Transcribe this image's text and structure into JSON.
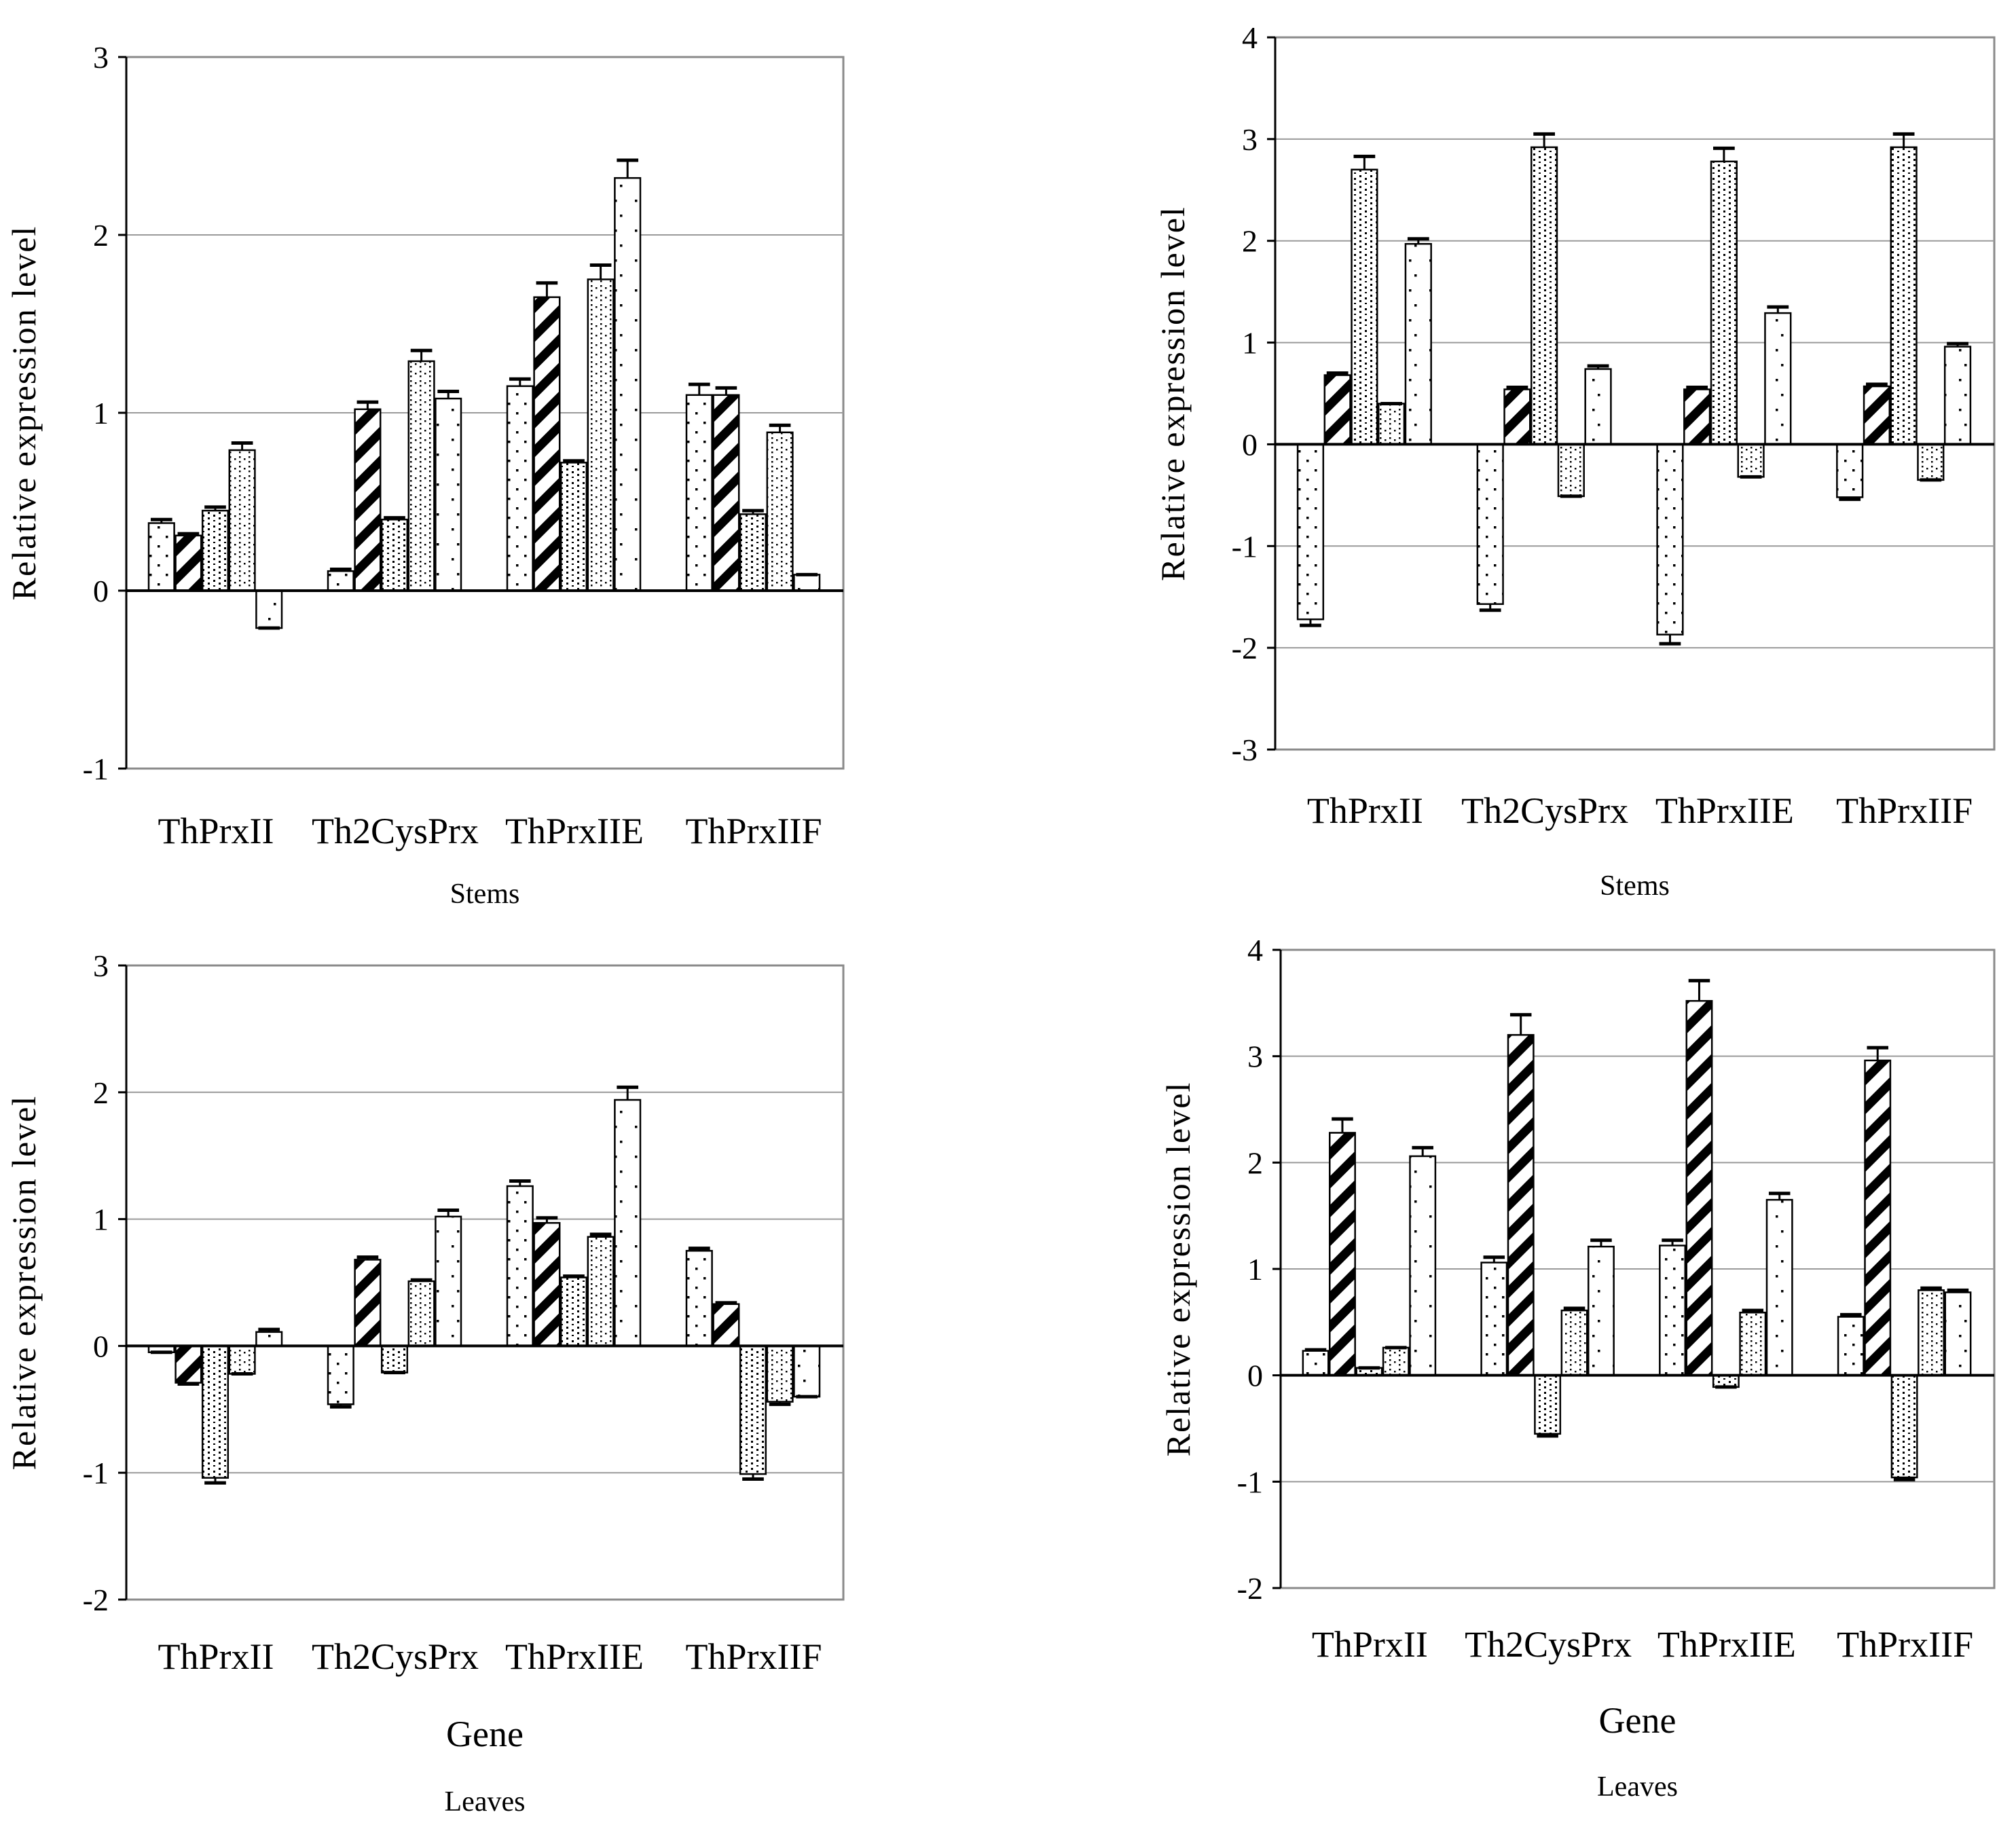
{
  "chart_data": [
    {
      "type": "bar",
      "panel": "top-left",
      "categories": [
        "ThPrxII",
        "Th2CysPrx",
        "ThPrxIIE",
        "ThPrxIIF"
      ],
      "series": [
        {
          "values": [
            0.38,
            0.11,
            1.15,
            1.1
          ],
          "errors": [
            0.02,
            0.01,
            0.04,
            0.06
          ],
          "fill": "sparse-dots"
        },
        {
          "values": [
            0.31,
            1.02,
            1.65,
            1.1
          ],
          "errors": [
            0.01,
            0.04,
            0.08,
            0.04
          ],
          "fill": "diagonal-stripes"
        },
        {
          "values": [
            0.45,
            0.4,
            0.72,
            0.43
          ],
          "errors": [
            0.02,
            0.01,
            0.01,
            0.02
          ],
          "fill": "dotted-wave"
        },
        {
          "values": [
            0.79,
            1.29,
            1.75,
            0.89
          ],
          "errors": [
            0.04,
            0.06,
            0.08,
            0.04
          ],
          "fill": "dotted-grid"
        },
        {
          "values": [
            -0.21,
            1.08,
            2.32,
            0.09
          ],
          "errors": [
            0.0,
            0.04,
            0.1,
            0.0
          ],
          "fill": "fine-dots"
        }
      ],
      "ylim": [
        -1,
        3
      ],
      "yticks": [
        -1,
        0,
        1,
        2,
        3
      ],
      "ylabel": "Relative expression level",
      "xlabel": "",
      "caption": "Stems",
      "grid": true
    },
    {
      "type": "bar",
      "panel": "top-right",
      "categories": [
        "ThPrxII",
        "Th2CysPrx",
        "ThPrxIIE",
        "ThPrxIIF"
      ],
      "series": [
        {
          "values": [
            -1.72,
            -1.57,
            -1.87,
            -0.52
          ],
          "errors": [
            0.06,
            0.06,
            0.09,
            0.02
          ],
          "fill": "sparse-dots"
        },
        {
          "values": [
            0.68,
            0.54,
            0.54,
            0.57
          ],
          "errors": [
            0.02,
            0.02,
            0.02,
            0.02
          ],
          "fill": "diagonal-stripes"
        },
        {
          "values": [
            2.7,
            2.92,
            2.78,
            2.92
          ],
          "errors": [
            0.13,
            0.13,
            0.13,
            0.13
          ],
          "fill": "dotted-wave"
        },
        {
          "values": [
            0.4,
            -0.51,
            -0.32,
            -0.35
          ],
          "errors": [
            0.0,
            0.0,
            0.0,
            0.0
          ],
          "fill": "dotted-grid"
        },
        {
          "values": [
            1.97,
            0.74,
            1.29,
            0.96
          ],
          "errors": [
            0.05,
            0.03,
            0.06,
            0.03
          ],
          "fill": "fine-dots"
        }
      ],
      "ylim": [
        -3,
        4
      ],
      "yticks": [
        -3,
        -2,
        -1,
        0,
        1,
        2,
        3,
        4
      ],
      "ylabel": "Relative expression level",
      "xlabel": "",
      "caption": "Stems",
      "grid": true
    },
    {
      "type": "bar",
      "panel": "bottom-left",
      "categories": [
        "ThPrxII",
        "Th2CysPrx",
        "ThPrxIIE",
        "ThPrxIIF"
      ],
      "series": [
        {
          "values": [
            -0.05,
            -0.46,
            1.26,
            0.75
          ],
          "errors": [
            0.0,
            0.02,
            0.04,
            0.02
          ],
          "fill": "sparse-dots"
        },
        {
          "values": [
            -0.29,
            0.68,
            0.97,
            0.33
          ],
          "errors": [
            0.01,
            0.02,
            0.04,
            0.01
          ],
          "fill": "diagonal-stripes"
        },
        {
          "values": [
            -1.04,
            -0.21,
            0.54,
            -1.01
          ],
          "errors": [
            0.04,
            0.0,
            0.01,
            0.04
          ],
          "fill": "dotted-wave"
        },
        {
          "values": [
            -0.22,
            0.51,
            0.86,
            -0.44
          ],
          "errors": [
            0.0,
            0.01,
            0.02,
            0.02
          ],
          "fill": "dotted-grid"
        },
        {
          "values": [
            0.11,
            1.02,
            1.94,
            -0.4
          ],
          "errors": [
            0.02,
            0.05,
            0.1,
            0.0
          ],
          "fill": "fine-dots"
        }
      ],
      "ylim": [
        -2,
        3
      ],
      "yticks": [
        -2,
        -1,
        0,
        1,
        2,
        3
      ],
      "ylabel": "Relative expression level",
      "xlabel": "Gene",
      "caption": "Leaves",
      "grid": true
    },
    {
      "type": "bar",
      "panel": "bottom-right",
      "categories": [
        "ThPrxII",
        "Th2CysPrx",
        "ThPrxIIE",
        "ThPrxIIF"
      ],
      "series": [
        {
          "values": [
            0.23,
            1.06,
            1.22,
            0.55
          ],
          "errors": [
            0.01,
            0.05,
            0.05,
            0.02
          ],
          "fill": "sparse-dots"
        },
        {
          "values": [
            2.28,
            3.2,
            3.52,
            2.96
          ],
          "errors": [
            0.13,
            0.19,
            0.19,
            0.12
          ],
          "fill": "diagonal-stripes"
        },
        {
          "values": [
            0.07,
            -0.55,
            -0.11,
            -0.96
          ],
          "errors": [
            0.0,
            0.02,
            0.0,
            0.02
          ],
          "fill": "dotted-wave"
        },
        {
          "values": [
            0.26,
            0.61,
            0.59,
            0.8
          ],
          "errors": [
            0.0,
            0.02,
            0.02,
            0.02
          ],
          "fill": "dotted-grid"
        },
        {
          "values": [
            2.06,
            1.21,
            1.65,
            0.78
          ],
          "errors": [
            0.08,
            0.06,
            0.06,
            0.02
          ],
          "fill": "fine-dots"
        }
      ],
      "ylim": [
        -2,
        4
      ],
      "yticks": [
        -2,
        -1,
        0,
        1,
        2,
        3,
        4
      ],
      "ylabel": "Relative expression level",
      "xlabel": "Gene",
      "caption": "Leaves",
      "grid": true
    }
  ]
}
